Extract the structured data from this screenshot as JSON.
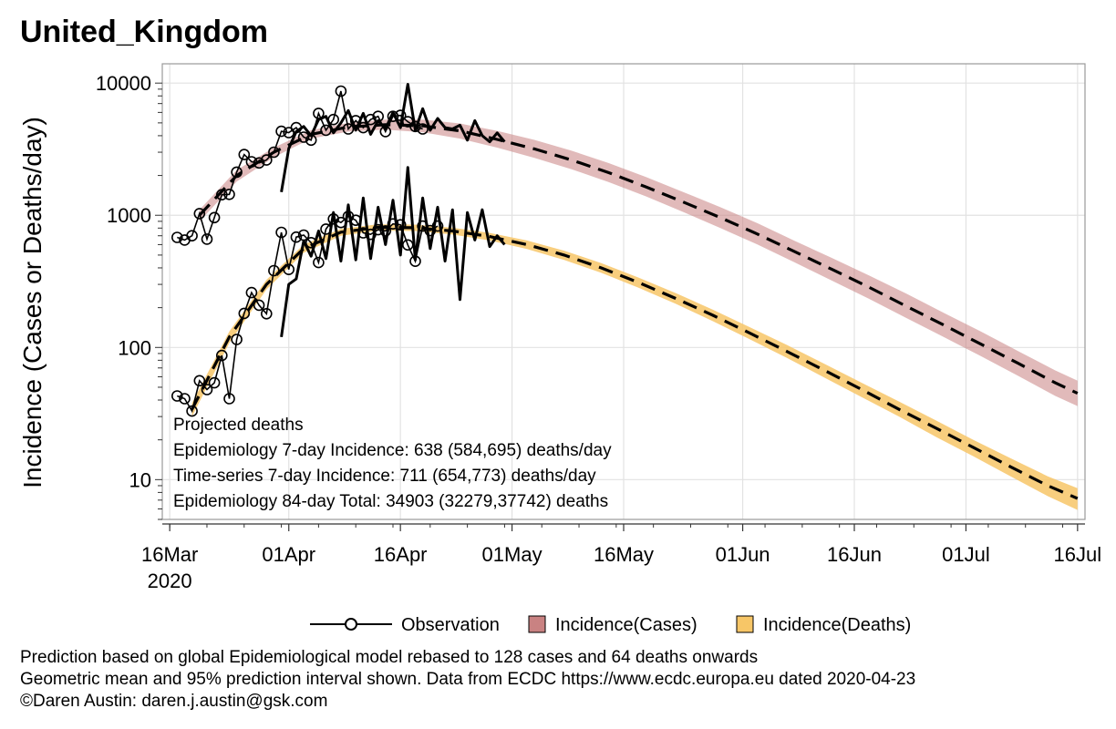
{
  "page_title": "United_Kingdom",
  "colors": {
    "cases_band": "#c98282",
    "deaths_band": "#f7c667",
    "line": "#000000",
    "grid": "#e2e2e2"
  },
  "chart_data": {
    "type": "line",
    "title": "United_Kingdom",
    "ylabel": "Incidence (Cases or Deaths/day)",
    "xlabel": "",
    "yscale": "log",
    "ylim": [
      5,
      14000
    ],
    "xlim": [
      "2020-03-15",
      "2020-07-17"
    ],
    "yticks": [
      10,
      100,
      1000,
      10000
    ],
    "ytick_labels": [
      "10",
      "100",
      "1000",
      "10000"
    ],
    "xticks": [
      "2020-03-16",
      "2020-04-01",
      "2020-04-16",
      "2020-05-01",
      "2020-05-16",
      "2020-06-01",
      "2020-06-16",
      "2020-07-01",
      "2020-07-16"
    ],
    "xtick_labels": [
      "16Mar",
      "01Apr",
      "16Apr",
      "01May",
      "16May",
      "01Jun",
      "16Jun",
      "01Jul",
      "16Jul"
    ],
    "xtick_sublabel": "2020",
    "grid": true,
    "legend_position": "bottom",
    "legend": [
      {
        "label": "Observation",
        "kind": "line-marker"
      },
      {
        "label": "Incidence(Cases)",
        "kind": "band",
        "color": "#c98282"
      },
      {
        "label": "Incidence(Deaths)",
        "kind": "band",
        "color": "#f7c667"
      }
    ],
    "annotations": [
      "Projected deaths",
      "Epidemiology 7-day Incidence:  638 (584,695) deaths/day",
      "Time-series 7-day Incidence:  711 (654,773) deaths/day",
      "Epidemiology 84-day Total:  34903 (32279,37742) deaths"
    ],
    "series": [
      {
        "name": "Observation",
        "group": "cases",
        "x": [
          "2020-03-17",
          "2020-03-18",
          "2020-03-19",
          "2020-03-20",
          "2020-03-21",
          "2020-03-22",
          "2020-03-23",
          "2020-03-24",
          "2020-03-25",
          "2020-03-26",
          "2020-03-27",
          "2020-03-28",
          "2020-03-29",
          "2020-03-30",
          "2020-03-31",
          "2020-04-01",
          "2020-04-02",
          "2020-04-03",
          "2020-04-04",
          "2020-04-05",
          "2020-04-06",
          "2020-04-07",
          "2020-04-08",
          "2020-04-09",
          "2020-04-10",
          "2020-04-11",
          "2020-04-12",
          "2020-04-13",
          "2020-04-14",
          "2020-04-15",
          "2020-04-16",
          "2020-04-17",
          "2020-04-18",
          "2020-04-19",
          "2020-04-20",
          "2020-04-21",
          "2020-04-22",
          "2020-04-23"
        ],
        "values": [
          680,
          650,
          700,
          1030,
          660,
          960,
          1430,
          1440,
          2120,
          2880,
          2540,
          2490,
          2620,
          3000,
          4320,
          4220,
          4600,
          3900,
          3700,
          5900,
          4400,
          5300,
          8700,
          4500,
          5200,
          4600,
          5300,
          5600,
          4300,
          5600,
          5700,
          5100,
          4700,
          4500,
          null,
          null,
          null,
          null
        ]
      },
      {
        "name": "Observation",
        "group": "deaths",
        "x": [
          "2020-03-17",
          "2020-03-18",
          "2020-03-19",
          "2020-03-20",
          "2020-03-21",
          "2020-03-22",
          "2020-03-23",
          "2020-03-24",
          "2020-03-25",
          "2020-03-26",
          "2020-03-27",
          "2020-03-28",
          "2020-03-29",
          "2020-03-30",
          "2020-03-31",
          "2020-04-01",
          "2020-04-02",
          "2020-04-03",
          "2020-04-04",
          "2020-04-05",
          "2020-04-06",
          "2020-04-07",
          "2020-04-08",
          "2020-04-09",
          "2020-04-10",
          "2020-04-11",
          "2020-04-12",
          "2020-04-13",
          "2020-04-14",
          "2020-04-15",
          "2020-04-16",
          "2020-04-17",
          "2020-04-18",
          "2020-04-19",
          "2020-04-20",
          "2020-04-21"
        ],
        "values": [
          43,
          41,
          33,
          56,
          48,
          54,
          87,
          41,
          115,
          181,
          260,
          209,
          180,
          381,
          743,
          389,
          684,
          708,
          621,
          439,
          786,
          938,
          881,
          980,
          917,
          737,
          717,
          778,
          761,
          861,
          847,
          596,
          449,
          828,
          767,
          828
        ]
      },
      {
        "name": "Time-series",
        "group": "cases",
        "x": [
          "2020-03-31",
          "2020-04-01",
          "2020-04-02",
          "2020-04-03",
          "2020-04-04",
          "2020-04-05",
          "2020-04-06",
          "2020-04-07",
          "2020-04-08",
          "2020-04-09",
          "2020-04-10",
          "2020-04-11",
          "2020-04-12",
          "2020-04-13",
          "2020-04-14",
          "2020-04-15",
          "2020-04-16",
          "2020-04-17",
          "2020-04-18",
          "2020-04-19",
          "2020-04-20",
          "2020-04-21",
          "2020-04-22",
          "2020-04-23",
          "2020-04-24",
          "2020-04-25",
          "2020-04-26",
          "2020-04-27",
          "2020-04-28",
          "2020-04-29",
          "2020-04-30"
        ],
        "values": [
          1500,
          3200,
          4300,
          4700,
          4000,
          5300,
          5600,
          4200,
          5000,
          6200,
          4400,
          5900,
          4100,
          5200,
          4500,
          6000,
          4600,
          9800,
          4400,
          6400,
          4400,
          5400,
          4600,
          4500,
          4800,
          3700,
          5200,
          4000,
          3600,
          4200,
          3600
        ]
      },
      {
        "name": "Time-series",
        "group": "deaths",
        "x": [
          "2020-03-31",
          "2020-04-01",
          "2020-04-02",
          "2020-04-03",
          "2020-04-04",
          "2020-04-05",
          "2020-04-06",
          "2020-04-07",
          "2020-04-08",
          "2020-04-09",
          "2020-04-10",
          "2020-04-11",
          "2020-04-12",
          "2020-04-13",
          "2020-04-14",
          "2020-04-15",
          "2020-04-16",
          "2020-04-17",
          "2020-04-18",
          "2020-04-19",
          "2020-04-20",
          "2020-04-21",
          "2020-04-22",
          "2020-04-23",
          "2020-04-24",
          "2020-04-25",
          "2020-04-26",
          "2020-04-27",
          "2020-04-28",
          "2020-04-29",
          "2020-04-30"
        ],
        "values": [
          120,
          300,
          330,
          640,
          490,
          760,
          470,
          1050,
          450,
          1200,
          460,
          1350,
          470,
          1150,
          600,
          1300,
          500,
          2300,
          460,
          1350,
          560,
          1150,
          450,
          1100,
          230,
          1050,
          650,
          1100,
          580,
          700,
          600
        ]
      },
      {
        "name": "Incidence(Cases)",
        "group": "cases",
        "x": [
          "2020-03-20",
          "2020-03-25",
          "2020-03-30",
          "2020-04-04",
          "2020-04-09",
          "2020-04-14",
          "2020-04-19",
          "2020-04-24",
          "2020-04-29",
          "2020-05-04",
          "2020-05-09",
          "2020-05-14",
          "2020-05-19",
          "2020-05-24",
          "2020-05-29",
          "2020-06-03",
          "2020-06-08",
          "2020-06-13",
          "2020-06-18",
          "2020-06-23",
          "2020-06-28",
          "2020-07-03",
          "2020-07-08",
          "2020-07-13",
          "2020-07-16"
        ],
        "values": [
          1000,
          2000,
          3000,
          4100,
          4650,
          4850,
          4750,
          4350,
          3750,
          3180,
          2620,
          2100,
          1640,
          1260,
          960,
          720,
          530,
          390,
          285,
          205,
          148,
          106,
          76,
          54,
          45
        ],
        "lower": [
          900,
          1800,
          2750,
          3800,
          4300,
          4450,
          4250,
          3800,
          3250,
          2720,
          2230,
          1780,
          1390,
          1060,
          800,
          600,
          440,
          320,
          233,
          167,
          120,
          86,
          61,
          43,
          36
        ],
        "upper": [
          1100,
          2200,
          3250,
          4400,
          5000,
          5300,
          5300,
          4950,
          4350,
          3720,
          3080,
          2480,
          1950,
          1500,
          1150,
          870,
          640,
          475,
          350,
          255,
          183,
          132,
          94,
          67,
          56
        ]
      },
      {
        "name": "Incidence(Deaths)",
        "group": "deaths",
        "x": [
          "2020-03-19",
          "2020-03-24",
          "2020-03-29",
          "2020-04-03",
          "2020-04-08",
          "2020-04-13",
          "2020-04-18",
          "2020-04-23",
          "2020-04-28",
          "2020-05-03",
          "2020-05-08",
          "2020-05-13",
          "2020-05-18",
          "2020-05-23",
          "2020-05-28",
          "2020-06-02",
          "2020-06-07",
          "2020-06-12",
          "2020-06-17",
          "2020-06-22",
          "2020-06-27",
          "2020-07-02",
          "2020-07-07",
          "2020-07-12",
          "2020-07-16"
        ],
        "values": [
          34,
          120,
          300,
          560,
          745,
          810,
          805,
          760,
          690,
          600,
          500,
          400,
          310,
          235,
          175,
          128,
          93,
          67,
          48,
          34,
          24.5,
          17.5,
          12.5,
          9,
          7.2
        ],
        "lower": [
          30,
          108,
          275,
          520,
          700,
          765,
          760,
          715,
          645,
          555,
          460,
          367,
          283,
          214,
          158,
          115,
          83,
          59,
          42,
          30,
          21,
          15,
          10.6,
          7.5,
          5.9
        ],
        "upper": [
          38,
          132,
          325,
          600,
          790,
          855,
          850,
          805,
          735,
          645,
          540,
          435,
          338,
          258,
          193,
          142,
          104,
          75,
          54,
          39,
          28,
          20,
          14.5,
          10.6,
          8.6
        ]
      }
    ]
  },
  "footer": {
    "line1": "Prediction based on global Epidemiological model rebased to 128 cases and 64 deaths onwards",
    "line2": "Geometric mean and 95% prediction interval shown. Data from ECDC https://www.ecdc.europa.eu dated 2020-04-23",
    "line3": "©Daren Austin: daren.j.austin@gsk.com"
  }
}
